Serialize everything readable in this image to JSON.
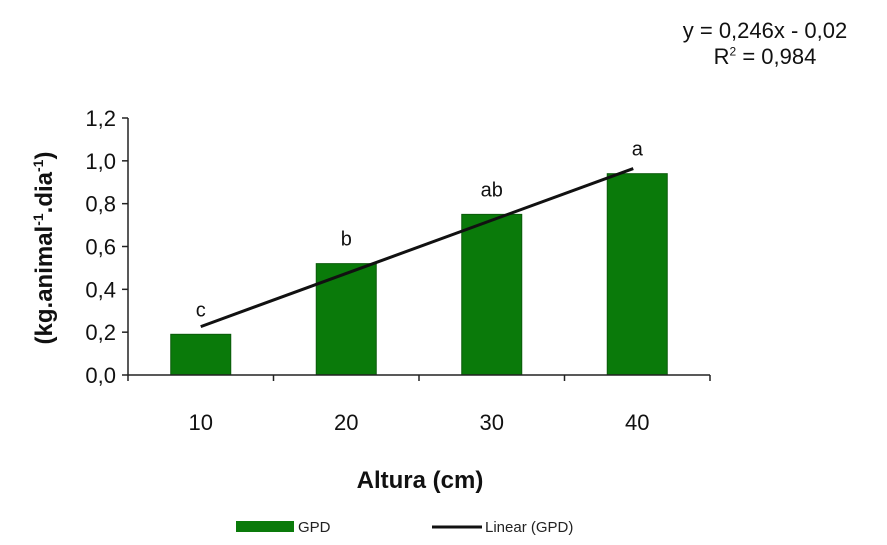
{
  "chart_data": {
    "type": "bar",
    "title": "",
    "xlabel": "Altura (cm)",
    "ylabel_parts": [
      "(kg.animal",
      "-1",
      ".dia",
      "-1",
      ")"
    ],
    "categories": [
      "10",
      "20",
      "30",
      "40"
    ],
    "series": [
      {
        "name": "GPD",
        "values": [
          0.19,
          0.52,
          0.75,
          0.94
        ],
        "color": "#0a7a0a"
      }
    ],
    "significance_letters": [
      "c",
      "b",
      "ab",
      "a"
    ],
    "trendline": {
      "name": "Linear (GPD)",
      "slope": 0.246,
      "intercept": -0.02,
      "equation": "y = 0,246x - 0,02",
      "r2_prefix": "R",
      "r2_sup": "2",
      "r2_value": " = 0,984",
      "color": "#111111"
    },
    "ylim": [
      0,
      1.2
    ],
    "yticks": [
      "0,0",
      "0,2",
      "0,4",
      "0,6",
      "0,8",
      "1,0",
      "1,2"
    ],
    "grid": false,
    "legend_position": "bottom"
  }
}
